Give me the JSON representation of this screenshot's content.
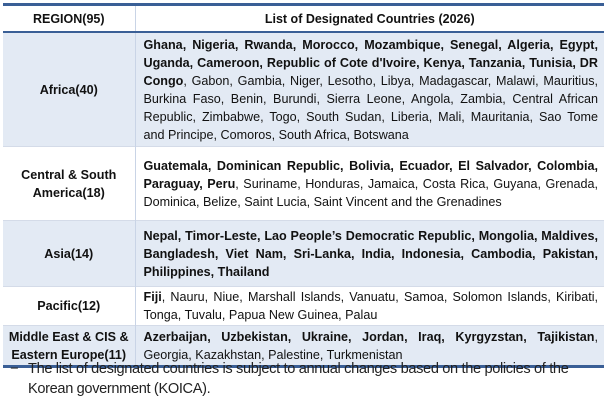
{
  "table": {
    "header": {
      "region": "REGION(95)",
      "countries": "List of Designated Countries (2026)"
    },
    "rows": [
      {
        "region": "Africa(40)",
        "shaded": true,
        "bold_countries": "Ghana, Nigeria, Rwanda, Morocco, Mozambique, Senegal, Algeria, Egypt, Uganda, Cameroon, Republic of Cote d'Ivoire, Kenya, Tanzania, Tunisia, DR Congo",
        "other_countries": ", Gabon, Gambia, Niger, Lesotho, Libya, Madagascar, Malawi, Mauritius, Burkina Faso, Benin, Burundi, Sierra Leone, Angola, Zambia, Central African Republic, Zimbabwe, Togo, South Sudan, Liberia, Mali, Mauritania, Sao Tome and Principe, Comoros, South Africa, Botswana"
      },
      {
        "region": "Central & South America(18)",
        "region_line1": "Central & South",
        "region_line2": "America(18)",
        "shaded": false,
        "bold_countries": "Guatemala, Dominican Republic, Bolivia, Ecuador, El Salvador, Colombia, Paraguay, Peru",
        "other_countries": ", Suriname, Honduras, Jamaica, Costa Rica, Guyana, Grenada, Dominica, Belize, Saint Lucia, Saint Vincent and the Grenadines"
      },
      {
        "region": "Asia(14)",
        "shaded": true,
        "bold_countries": "Nepal, Timor-Leste, Lao People’s Democratic Republic, Mongolia, Maldives, Bangladesh, Viet Nam, Sri-Lanka, India, Indonesia, Cambodia, Pakistan, Philippines, Thailand",
        "other_countries": ""
      },
      {
        "region": "Pacific(12)",
        "shaded": false,
        "bold_countries": "Fiji",
        "other_countries": ", Nauru, Niue, Marshall  Islands, Vanuatu, Samoa, Solomon Islands, Kiribati, Tonga, Tuvalu, Papua New Guinea, Palau"
      },
      {
        "region": "Middle East & CIS & Eastern Europe(11)",
        "region_line1": "Middle East & CIS &",
        "region_line2": "Eastern Europe(11)",
        "shaded": true,
        "bold_countries": "Azerbaijan, Uzbekistan, Ukraine, Jordan, Iraq, Kyrgyzstan, Tajikistan",
        "other_countries": ", Georgia, Kazakhstan, Palestine, Turkmenistan"
      }
    ]
  },
  "footnote": {
    "bullet": "−",
    "text": "The list of designated countries is subject to annual changes based on the policies of the Korean government (KOICA)."
  },
  "colors": {
    "rule": "#3a5f96",
    "shade": "#e3eaf4",
    "divider": "#c9d4e6"
  }
}
